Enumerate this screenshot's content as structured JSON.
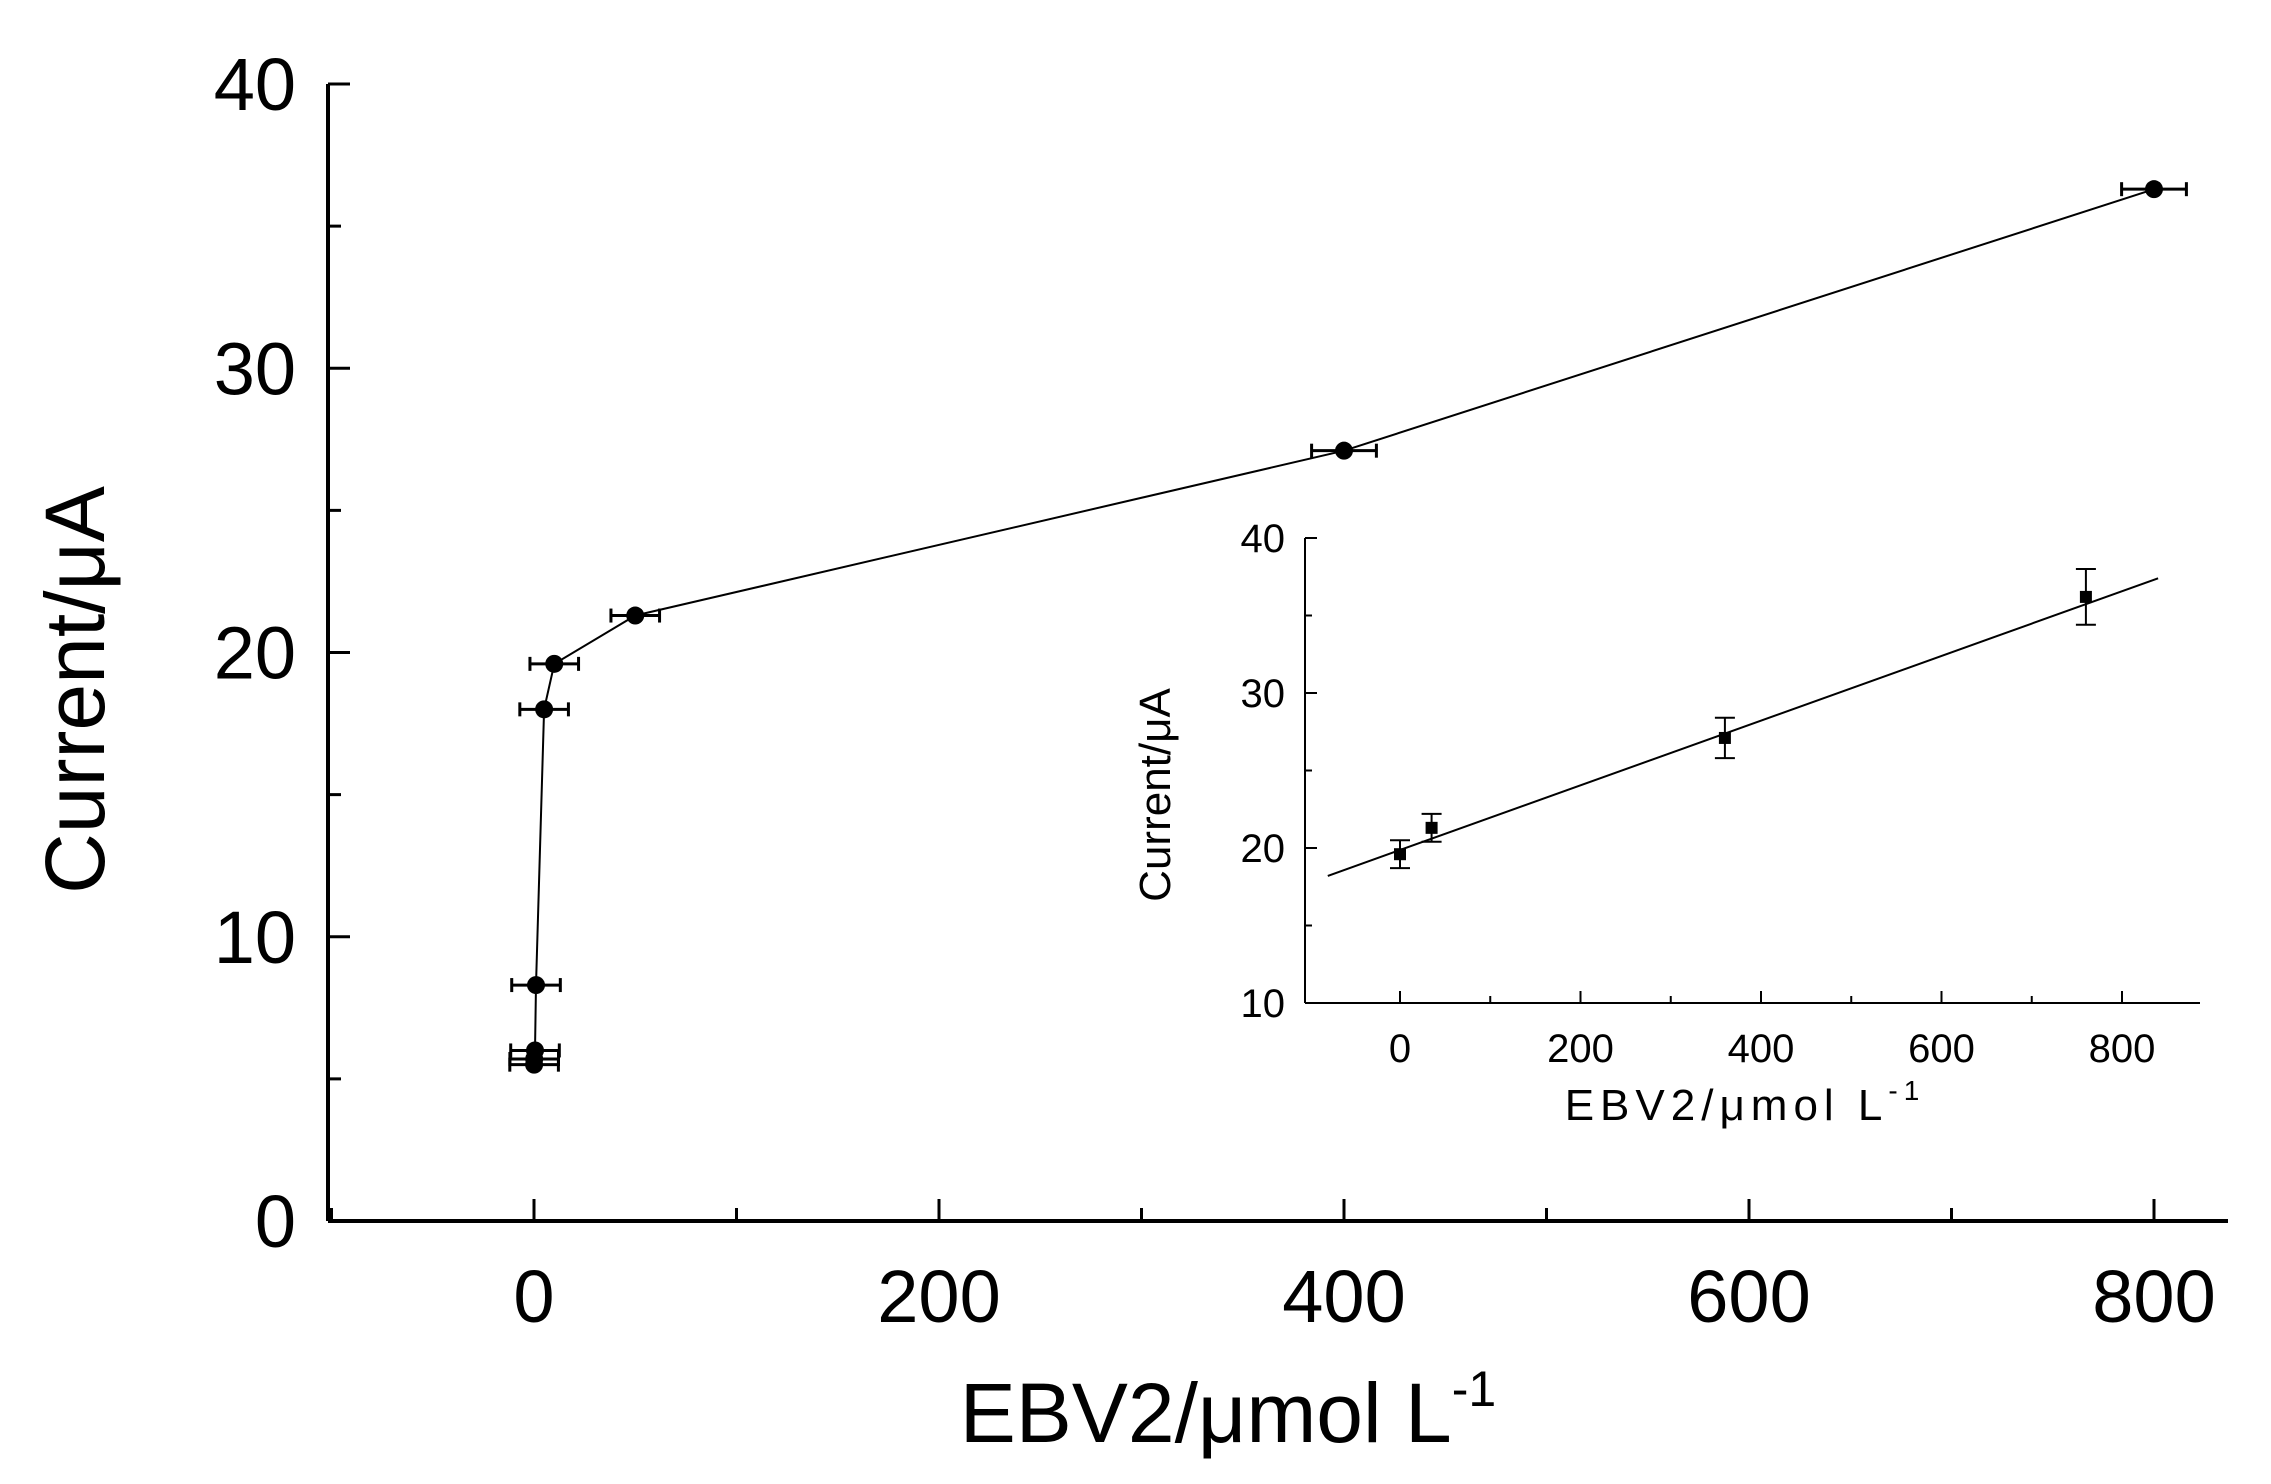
{
  "chart_data": [
    {
      "type": "line",
      "panel": "main",
      "xlabel_text": "EBV2/μmol L",
      "xlabel_sup": "-1",
      "ylabel": "Current/μA",
      "xlim": [
        -100,
        840
      ],
      "ylim": [
        0,
        40
      ],
      "xticks": [
        0,
        200,
        400,
        600,
        800
      ],
      "xticklabels": [
        "0",
        "200",
        "400",
        "600",
        "800"
      ],
      "yticks": [
        0,
        10,
        20,
        30,
        40
      ],
      "yticklabels": [
        "0",
        "10",
        "20",
        "30",
        "40"
      ],
      "grid": false,
      "marker": "circle",
      "series": [
        {
          "x": [
            0.05,
            0.1,
            0.5,
            1,
            5,
            10,
            50,
            400,
            800
          ],
          "y": [
            5.5,
            5.7,
            6.0,
            8.3,
            18.0,
            19.6,
            21.3,
            27.1,
            36.3
          ],
          "xerr": [
            12,
            12,
            12,
            12,
            12,
            12,
            12,
            16,
            16
          ]
        }
      ]
    },
    {
      "type": "scatter",
      "panel": "inset",
      "xlabel_text": "EBV2/μmol L",
      "xlabel_sup": "-1",
      "ylabel": "Current/μA",
      "xlim": [
        -80,
        840
      ],
      "ylim": [
        10,
        40
      ],
      "xticks": [
        0,
        200,
        400,
        600,
        800
      ],
      "xticklabels": [
        "0",
        "200",
        "400",
        "600",
        "800"
      ],
      "yticks": [
        10,
        20,
        30,
        40
      ],
      "yticklabels": [
        "10",
        "20",
        "30",
        "40"
      ],
      "grid": false,
      "marker": "square",
      "series": [
        {
          "x": [
            0,
            35,
            360,
            760
          ],
          "y": [
            19.6,
            21.3,
            27.1,
            36.2
          ],
          "yerr": [
            0.9,
            0.9,
            1.3,
            1.8
          ]
        }
      ],
      "fit_line": {
        "x": [
          -80,
          840
        ],
        "y": [
          18.2,
          37.4
        ]
      }
    }
  ]
}
